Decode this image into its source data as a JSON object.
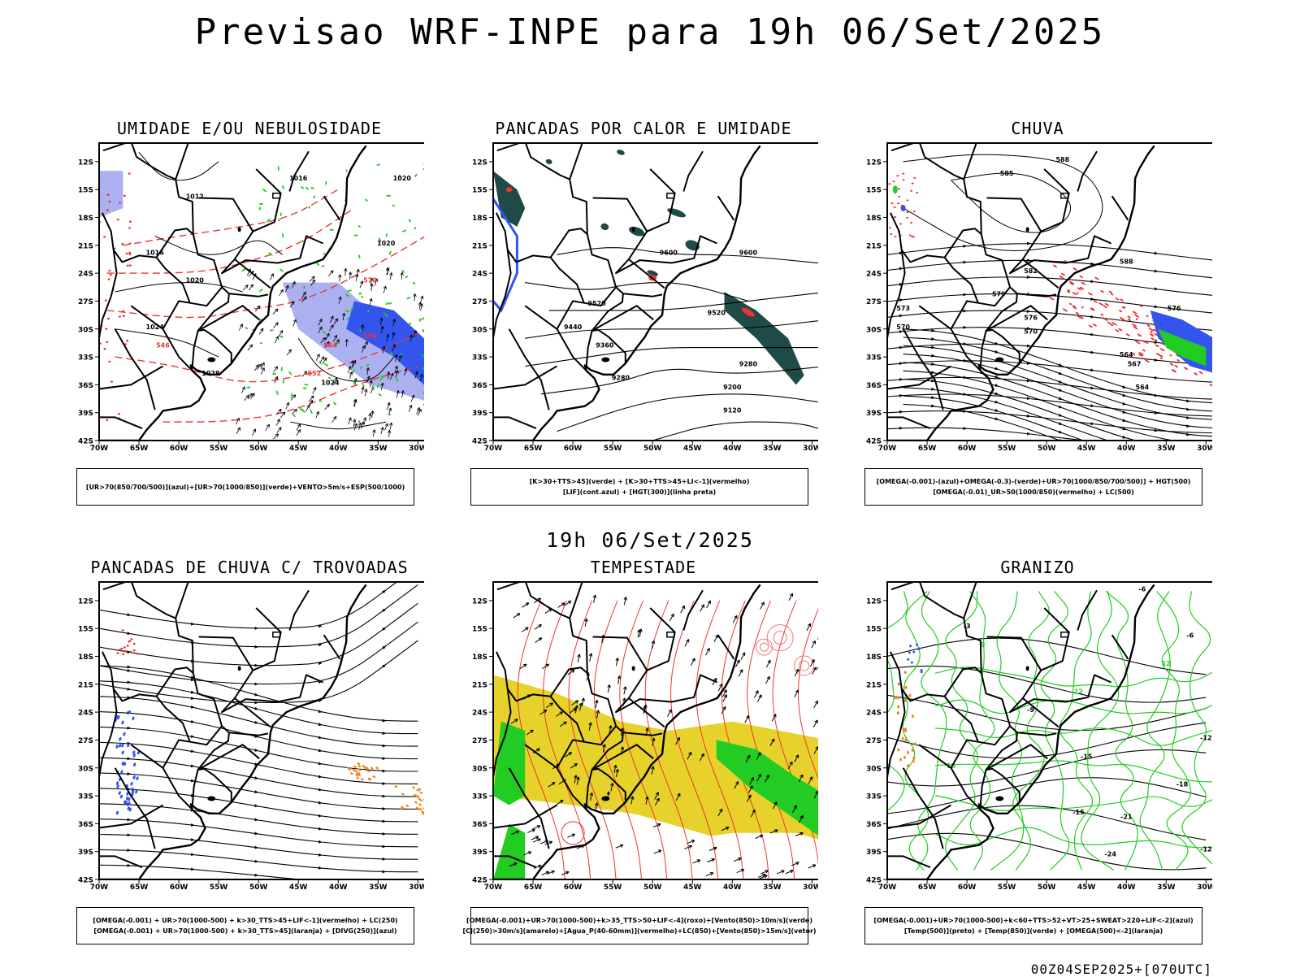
{
  "title": "Previsao WRF-INPE  para 19h 06/Set/2025",
  "subtitle": "19h 06/Set/2025",
  "footer": "00Z04SEP2025+[070UTC]",
  "axes": {
    "lat_ticks": [
      "12S",
      "15S",
      "18S",
      "21S",
      "24S",
      "27S",
      "30S",
      "33S",
      "36S",
      "39S",
      "42S"
    ],
    "lon_ticks": [
      "70W",
      "65W",
      "60W",
      "55W",
      "50W",
      "45W",
      "40W",
      "35W",
      "30W"
    ]
  },
  "panels": [
    {
      "title": "UMIDADE E/OU NEBULOSIDADE",
      "legend": [
        "[UR>70(850/700/500)](azul)+[UR>70(1000/850)](verde)+VENTO>5m/s+ESP(500/1000)"
      ],
      "labels": [
        "1012",
        "1016",
        "1020",
        "1024",
        "1028",
        "570",
        "564",
        "558",
        "552",
        "546"
      ]
    },
    {
      "title": "PANCADAS POR CALOR E UMIDADE",
      "legend": [
        "[K>30+TTS>45](verde) + [K>30+TTS>45+LI<-1](vermelho)",
        "[LIF](cont.azul) + [HGT(300)](linha preta)"
      ],
      "labels": [
        "9600",
        "9520",
        "9440",
        "9360",
        "9280",
        "9200",
        "9120"
      ]
    },
    {
      "title": "CHUVA",
      "legend": [
        "[OMEGA(-0.001)-(azul)+OMEGA(-0.3)-(verde)+UR>70(1000/850/700/500)] + HGT(500)",
        "[OMEGA(-0.01)_UR>50(1000/850)(vermelho) + LC(500)"
      ],
      "labels": [
        "588",
        "585",
        "582",
        "579",
        "576",
        "573",
        "570",
        "567",
        "564"
      ]
    },
    {
      "title": "PANCADAS DE CHUVA C/ TROVOADAS",
      "legend": [
        "[OMEGA(-0.001) + UR>70(1000-500) + k>30_TTS>45+LIF<-1](vermelho) + LC(250)",
        "[OMEGA(-0.001) + UR>70(1000-500) + k>30_TTS>45](laranja) + [DIVG(250)](azul)"
      ],
      "labels": []
    },
    {
      "title": "TEMPESTADE",
      "legend": [
        "[OMEGA(-0.001)+UR>70(1000-500)+k>35_TTS>50+LIF<-4](roxo)+[Vento(850)>10m/s](verde)",
        "[CJ(250)>30m/s](amarelo)+[Agua_P(40-60mm)](vermelho)+LC(850)+[Vento(850)>15m/s](vetor)"
      ],
      "labels": []
    },
    {
      "title": "GRANIZO",
      "legend": [
        "[OMEGA(-0.001)+UR>70(1000-500)+k<60+TTS>52+VT>25+SWEAT>220+LIF<-2](azul)",
        "[Temp(500)](preto) + [Temp(850)](verde) + [OMEGA(500)<-2](laranja)"
      ],
      "labels": [
        "-3",
        "-6",
        "-9",
        "-12",
        "-15",
        "-18",
        "-21",
        "-24",
        "15",
        "12",
        "9",
        "6"
      ]
    }
  ],
  "colors": {
    "blue": "#3355ee",
    "green": "#22cc22",
    "red": "#ee3333",
    "dark_green": "#1f4a47",
    "yellow": "#e6d22a",
    "orange": "#ee8822",
    "lavender": "#aab0f0"
  }
}
